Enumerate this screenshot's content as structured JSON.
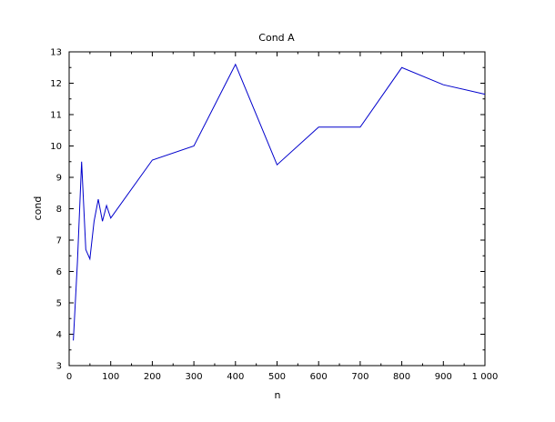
{
  "chart_data": {
    "type": "line",
    "title": "Cond A",
    "xlabel": "n",
    "ylabel": "cond",
    "xlim": [
      0,
      1000
    ],
    "ylim": [
      3,
      13
    ],
    "x_ticks": [
      0,
      100,
      200,
      300,
      400,
      500,
      600,
      700,
      800,
      900,
      1000
    ],
    "x_tick_labels": [
      "0",
      "100",
      "200",
      "300",
      "400",
      "500",
      "600",
      "700",
      "800",
      "900",
      "1 000"
    ],
    "y_ticks": [
      3,
      4,
      5,
      6,
      7,
      8,
      9,
      10,
      11,
      12,
      13
    ],
    "y_tick_labels": [
      "3",
      "4",
      "5",
      "6",
      "7",
      "8",
      "9",
      "10",
      "11",
      "12",
      "13"
    ],
    "grid": false,
    "legend": "none",
    "line_color": "#0000cc",
    "series": [
      {
        "x": [
          10,
          20,
          30,
          40,
          50,
          60,
          70,
          80,
          90,
          100,
          200,
          300,
          400,
          500,
          600,
          700,
          800,
          900,
          1000
        ],
        "y": [
          3.8,
          6.3,
          9.5,
          6.7,
          6.4,
          7.6,
          8.3,
          7.6,
          8.1,
          7.7,
          9.55,
          10.0,
          12.6,
          9.4,
          10.6,
          10.6,
          12.5,
          11.95,
          11.65
        ]
      }
    ]
  }
}
